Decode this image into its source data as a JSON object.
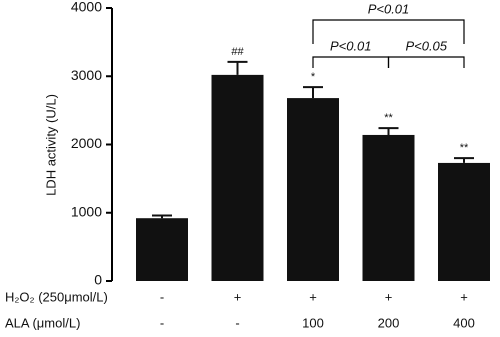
{
  "chart_data": {
    "type": "bar",
    "ylabel": "LDH activity (U/L)",
    "values": [
      920,
      3020,
      2680,
      2140,
      1730
    ],
    "errors": [
      40,
      190,
      160,
      100,
      70
    ],
    "marks": [
      null,
      "##",
      "*",
      "**",
      "**"
    ],
    "color": "#111111",
    "ylim": [
      0,
      4000
    ],
    "yticks": [
      0,
      1000,
      2000,
      3000,
      4000
    ],
    "comparisons": [
      {
        "bars": [
          2,
          4
        ],
        "label": "P<0.01"
      },
      {
        "bars": [
          2,
          3
        ],
        "label": "P<0.01"
      },
      {
        "bars": [
          3,
          4
        ],
        "label": "P<0.05"
      }
    ],
    "treatments": [
      {
        "label": "H₂O₂ (250μmol/L)",
        "values": [
          "-",
          "+",
          "+",
          "+",
          "+"
        ]
      },
      {
        "label": "ALA (μmol/L)",
        "values": [
          "-",
          "-",
          "100",
          "200",
          "400"
        ]
      }
    ]
  }
}
